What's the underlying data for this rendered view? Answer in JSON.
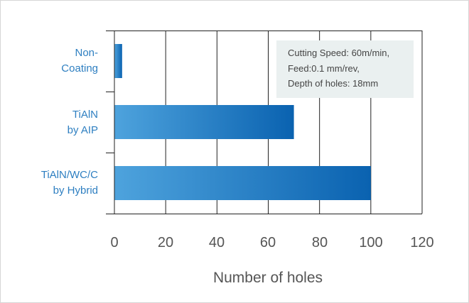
{
  "chart_data": {
    "type": "bar",
    "orientation": "horizontal",
    "categories": [
      [
        "Non-",
        "Coating"
      ],
      [
        "TiAlN",
        "by AIP"
      ],
      [
        "TiAlN/WC/C",
        "by Hybrid"
      ]
    ],
    "values": [
      3,
      70,
      100
    ],
    "xlabel": "Number of holes",
    "ylabel": "",
    "xlim": [
      0,
      120
    ],
    "xticks": [
      "0",
      "20",
      "40",
      "60",
      "80",
      "100",
      "120"
    ],
    "annotation": [
      "Cutting Speed: 60m/min,",
      "Feed:0.1 mm/rev,",
      "Depth of holes: 18mm"
    ],
    "grid": "vertical",
    "colors": {
      "bar_start": "#4ea3dd",
      "bar_end": "#0a62b0",
      "category_text": "#2e7fc1",
      "annotation_bg": "#eaf0f0"
    }
  }
}
